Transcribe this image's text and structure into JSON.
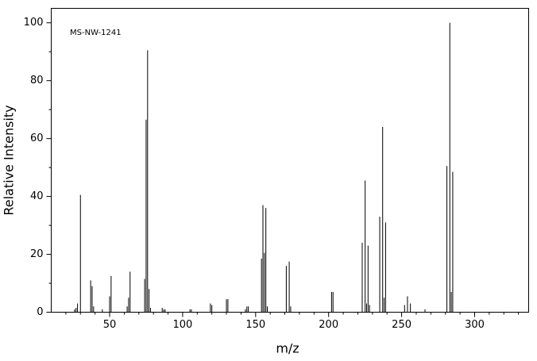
{
  "chart_data": {
    "type": "stem",
    "annotation": "MS-NW-1241",
    "xlabel": "m/z",
    "ylabel": "Relative Intensity",
    "x": [
      26,
      27,
      28,
      30,
      37,
      38,
      39,
      45,
      50,
      51,
      62,
      63,
      64,
      74,
      75,
      76,
      77,
      78,
      86,
      87,
      88,
      105,
      106,
      119,
      120,
      130,
      131,
      143,
      144,
      145,
      154,
      155,
      156,
      157,
      158,
      171,
      173,
      174,
      202,
      203,
      223,
      225,
      226,
      227,
      228,
      235,
      237,
      238,
      239,
      252,
      254,
      256,
      266,
      281,
      283,
      284,
      285
    ],
    "values": [
      1,
      1.5,
      3,
      40.5,
      11,
      9,
      2,
      1,
      5.5,
      12.5,
      2,
      5,
      14,
      11.5,
      66.5,
      90.5,
      8,
      1.5,
      1.5,
      1,
      1,
      1,
      1,
      3,
      2.5,
      4.5,
      4.5,
      1,
      2,
      2,
      18.5,
      37,
      20.5,
      36,
      2,
      16,
      17.5,
      2,
      7,
      7,
      24,
      45.5,
      3,
      23,
      2.5,
      33,
      64,
      5,
      31,
      2.5,
      5.5,
      3,
      1,
      50.5,
      100,
      7,
      48.5
    ],
    "color": "#000000",
    "xlim": [
      10,
      337
    ],
    "xticks": [
      50,
      100,
      150,
      200,
      250,
      300
    ],
    "xminorticks": [
      20,
      30,
      40,
      60,
      70,
      80,
      90,
      110,
      120,
      130,
      140,
      160,
      170,
      180,
      190,
      210,
      220,
      230,
      240,
      260,
      270,
      280,
      290,
      310,
      320,
      330
    ],
    "ylim": [
      0,
      105
    ],
    "yticks": [
      0,
      20,
      40,
      60,
      80,
      100
    ],
    "yminorticks": [
      10,
      30,
      50,
      70,
      90
    ]
  }
}
